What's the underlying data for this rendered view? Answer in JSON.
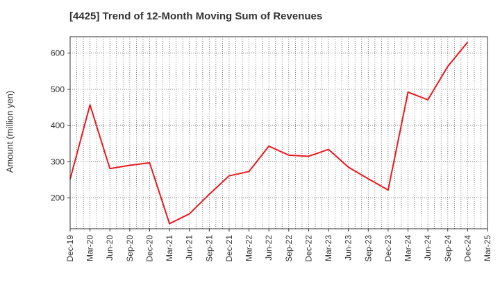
{
  "colors": {
    "line": "#e8191d",
    "grid": "#555555",
    "frame": "#333333",
    "text": "#333333"
  },
  "chart_data": {
    "type": "line",
    "title": "[4425]  Trend of 12-Month Moving Sum of Revenues",
    "ylabel": "Amount (million yen)",
    "xlabel": "",
    "ylim": [
      115,
      645
    ],
    "yticks": [
      200,
      300,
      400,
      500,
      600
    ],
    "grid": true,
    "x": [
      "Dec-19",
      "Mar-20",
      "Jun-20",
      "Sep-20",
      "Dec-20",
      "Mar-21",
      "Jun-21",
      "Sep-21",
      "Dec-21",
      "Mar-22",
      "Jun-22",
      "Sep-22",
      "Dec-22",
      "Mar-23",
      "Jun-23",
      "Sep-23",
      "Dec-23",
      "Mar-24",
      "Jun-24",
      "Sep-24",
      "Dec-24",
      "Mar-25"
    ],
    "series": [
      {
        "values": [
          252,
          457,
          281,
          290,
          297,
          129,
          156,
          210,
          261,
          273,
          343,
          318,
          315,
          334,
          285,
          253,
          222,
          492,
          471,
          563,
          630,
          null
        ]
      }
    ]
  }
}
